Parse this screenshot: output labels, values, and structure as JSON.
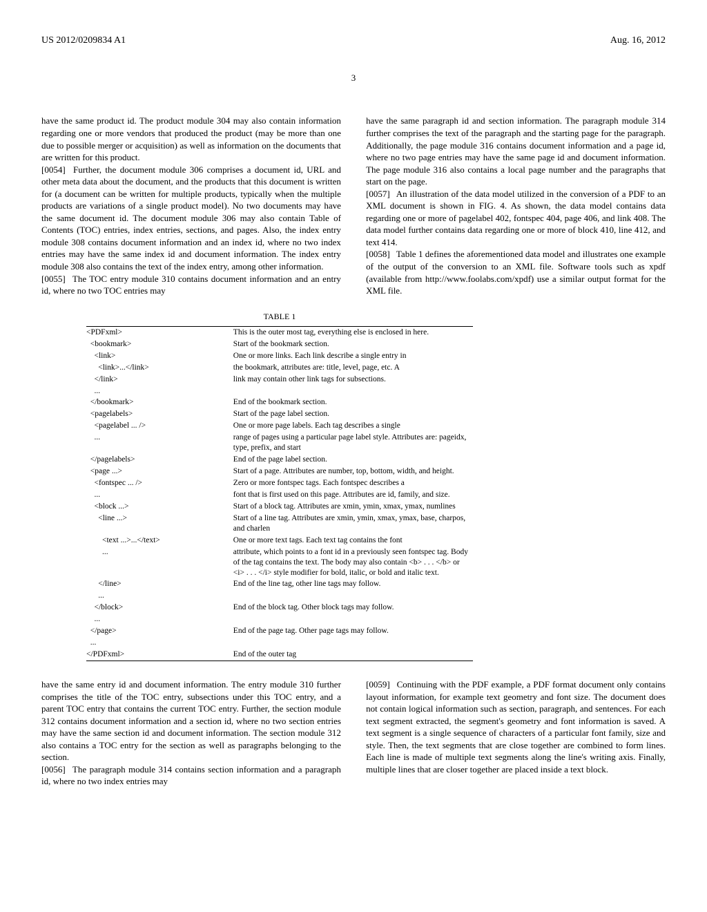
{
  "header": {
    "left": "US 2012/0209834 A1",
    "right": "Aug. 16, 2012"
  },
  "page_number": "3",
  "col_left": {
    "p1": "have the same product id. The product module 304 may also contain information regarding one or more vendors that produced the product (may be more than one due to possible merger or acquisition) as well as information on the documents that are written for this product.",
    "p2_num": "[0054]",
    "p2": " Further, the document module 306 comprises a document id, URL and other meta data about the document, and the products that this document is written for (a document can be written for multiple products, typically when the multiple products are variations of a single product model). No two documents may have the same document id. The document module 306 may also contain Table of Contents (TOC) entries, index entries, sections, and pages. Also, the index entry module 308 contains document information and an index id, where no two index entries may have the same index id and document information. The index entry module 308 also contains the text of the index entry, among other information.",
    "p3_num": "[0055]",
    "p3": " The TOC entry module 310 contains document information and an entry id, where no two TOC entries may"
  },
  "col_right": {
    "p1": "have the same paragraph id and section information. The paragraph module 314 further comprises the text of the paragraph and the starting page for the paragraph. Additionally, the page module 316 contains document information and a page id, where no two page entries may have the same page id and document information. The page module 316 also contains a local page number and the paragraphs that start on the page.",
    "p2_num": "[0057]",
    "p2": " An illustration of the data model utilized in the conversion of a PDF to an XML document is shown in FIG. 4. As shown, the data model contains data regarding one or more of pagelabel 402, fontspec 404, page 406, and link 408. The data model further contains data regarding one or more of block 410, line 412, and text 414.",
    "p3_num": "[0058]",
    "p3": " Table 1 defines the aforementioned data model and illustrates one example of the output of the conversion to an XML file. Software tools such as xpdf (available from http://www.foolabs.com/xpdf) use a similar output format for the XML file."
  },
  "table": {
    "title": "TABLE 1",
    "rows": [
      {
        "tag": "<PDFxml>",
        "desc": "This is the outer most tag, everything else is enclosed in here."
      },
      {
        "tag": "  <bookmark>",
        "desc": "Start of the bookmark section."
      },
      {
        "tag": "    <link>",
        "desc": "One or more links. Each link describe a single entry in"
      },
      {
        "tag": "      <link>...</link>",
        "desc": "the bookmark, attributes are: title, level, page, etc. A"
      },
      {
        "tag": "    </link>",
        "desc": "link may contain other link tags for subsections."
      },
      {
        "tag": "    ...",
        "desc": ""
      },
      {
        "tag": "  </bookmark>",
        "desc": "End of the bookmark section."
      },
      {
        "tag": "  <pagelabels>",
        "desc": "Start of the page label section."
      },
      {
        "tag": "    <pagelabel ... />",
        "desc": "One or more page labels. Each tag describes a single"
      },
      {
        "tag": "    ...",
        "desc": "range of pages using a particular page label style. Attributes are: pageidx, type, prefix, and start"
      },
      {
        "tag": "  </pagelabels>",
        "desc": "End of the page label section."
      },
      {
        "tag": "  <page ...>",
        "desc": "Start of a page. Attributes are number, top, bottom, width, and height."
      },
      {
        "tag": "    <fontspec ... />",
        "desc": "Zero or more fontspec tags. Each fontspec describes a"
      },
      {
        "tag": "    ...",
        "desc": "font that is first used on this page. Attributes are id, family, and size."
      },
      {
        "tag": "    <block ...>",
        "desc": "Start of a block tag. Attributes are xmin, ymin, xmax, ymax, numlines"
      },
      {
        "tag": "      <line ...>",
        "desc": "Start of a line tag. Attributes are xmin, ymin, xmax, ymax, base, charpos, and charlen"
      },
      {
        "tag": "        <text ...>...</text>",
        "desc": "One or more text tags. Each text tag contains the font"
      },
      {
        "tag": "        ...",
        "desc": "attribute, which points to a font id in a previously seen fontspec tag. Body of the tag contains the text. The body may also contain <b> . . . </b> or <i> . . . </i> style modifier for bold, italic, or bold and italic text."
      },
      {
        "tag": "      </line>",
        "desc": "End of the line tag, other line tags may follow."
      },
      {
        "tag": "      ...",
        "desc": ""
      },
      {
        "tag": "    </block>",
        "desc": "End of the block tag. Other block tags may follow."
      },
      {
        "tag": "    ...",
        "desc": ""
      },
      {
        "tag": "  </page>",
        "desc": "End of the page tag. Other page tags may follow."
      },
      {
        "tag": "  ...",
        "desc": ""
      },
      {
        "tag": "</PDFxml>",
        "desc": "End of the outer tag"
      }
    ]
  },
  "col_left_bottom": {
    "p1": "have the same entry id and document information. The entry module 310 further comprises the title of the TOC entry, subsections under this TOC entry, and a parent TOC entry that contains the current TOC entry. Further, the section module 312 contains document information and a section id, where no two section entries may have the same section id and document information. The section module 312 also contains a TOC entry for the section as well as paragraphs belonging to the section.",
    "p2_num": "[0056]",
    "p2": " The paragraph module 314 contains section information and a paragraph id, where no two index entries may"
  },
  "col_right_bottom": {
    "p1_num": "[0059]",
    "p1": " Continuing with the PDF example, a PDF format document only contains layout information, for example text geometry and font size. The document does not contain logical information such as section, paragraph, and sentences. For each text segment extracted, the segment's geometry and font information is saved. A text segment is a single sequence of characters of a particular font family, size and style. Then, the text segments that are close together are combined to form lines. Each line is made of multiple text segments along the line's writing axis. Finally, multiple lines that are closer together are placed inside a text block."
  }
}
